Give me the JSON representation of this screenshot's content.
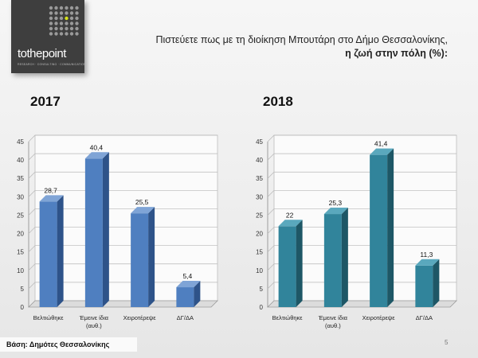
{
  "logo": {
    "text": "tothepoint",
    "tagline": "RESEARCH · CONSULTING · COMMUNICATION"
  },
  "question": {
    "line1": "Πιστεύετε πως με τη διοίκηση Μπουτάρη στο Δήμο Θεσσαλονίκης,",
    "line2": "η ζωή στην πόλη (%):"
  },
  "base_note": "Βάση: Δημότες Θεσσαλονίκης",
  "page_number": "5",
  "colors": {
    "bar_2017_front": "#4f7fc0",
    "bar_2017_side": "#2e5389",
    "bar_2017_top": "#7fa4d6",
    "bar_2018_front": "#31849b",
    "bar_2018_side": "#1e5766",
    "bar_2018_top": "#5aa8bd"
  },
  "chart_data": [
    {
      "type": "bar",
      "title": "2017",
      "categories": [
        "Βελτιώθηκε",
        "Έμεινε ίδια (αυθ.)",
        "Χειροτέρεψε",
        "ΔΓ/ΔΑ"
      ],
      "values": [
        28.7,
        40.4,
        25.5,
        5.4
      ],
      "value_labels": [
        "28,7",
        "40,4",
        "25,5",
        "5,4"
      ],
      "ylim": [
        0,
        45
      ],
      "yticks": [
        0,
        5,
        10,
        15,
        20,
        25,
        30,
        35,
        40,
        45
      ],
      "grid": true
    },
    {
      "type": "bar",
      "title": "2018",
      "categories": [
        "Βελτιώθηκε",
        "Έμεινε ίδια (αυθ.)",
        "Χειροτέρεψε",
        "ΔΓ/ΔΑ"
      ],
      "values": [
        22,
        25.3,
        41.4,
        11.3
      ],
      "value_labels": [
        "22",
        "25,3",
        "41,4",
        "11,3"
      ],
      "ylim": [
        0,
        45
      ],
      "yticks": [
        0,
        5,
        10,
        15,
        20,
        25,
        30,
        35,
        40,
        45
      ],
      "grid": true
    }
  ]
}
